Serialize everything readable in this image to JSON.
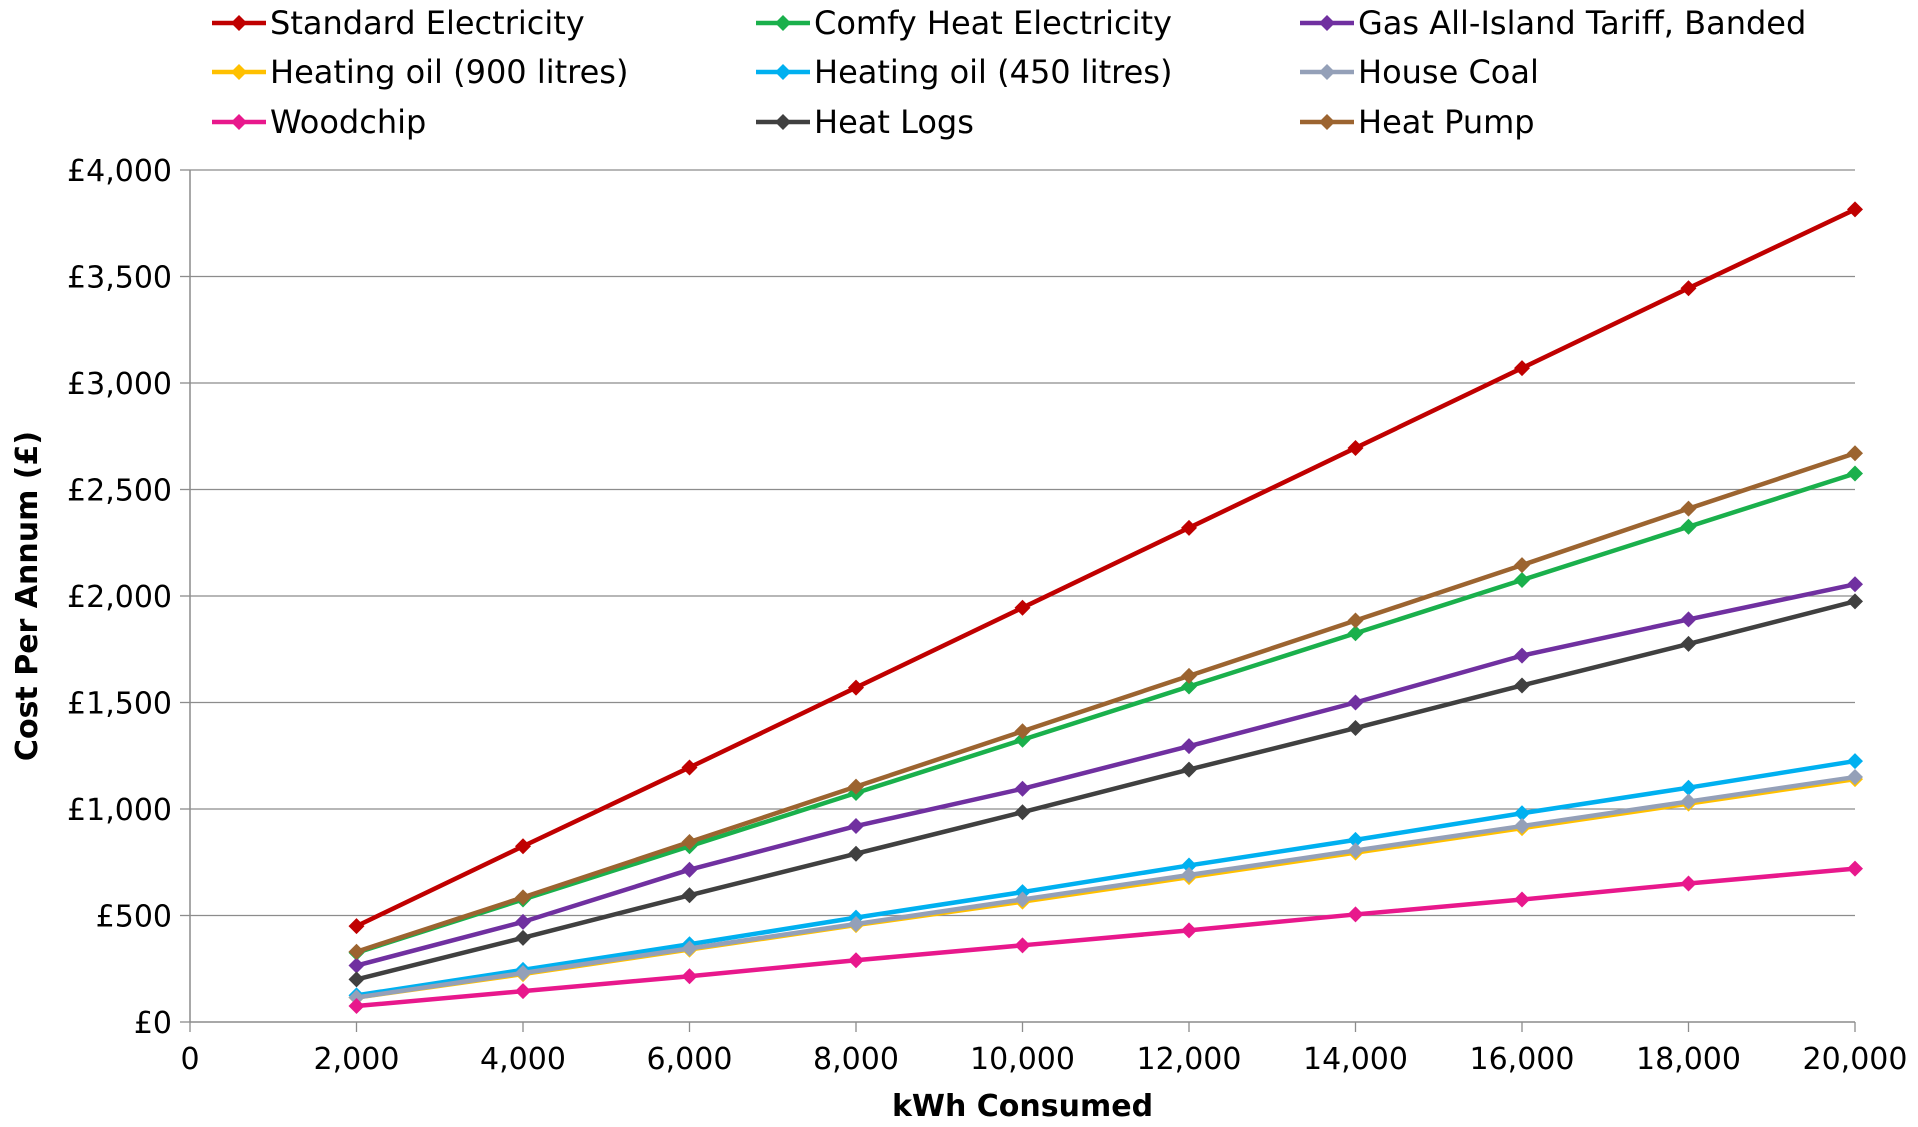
{
  "chart_data": {
    "type": "line",
    "title": "",
    "xlabel": "kWh Consumed",
    "ylabel": "Cost Per Annum (£)",
    "xlim": [
      0,
      20000
    ],
    "ylim": [
      0,
      4000
    ],
    "x_ticks": [
      0,
      2000,
      4000,
      6000,
      8000,
      10000,
      12000,
      14000,
      16000,
      18000,
      20000
    ],
    "x_tick_labels": [
      "0",
      "2,000",
      "4,000",
      "6,000",
      "8,000",
      "10,000",
      "12,000",
      "14,000",
      "16,000",
      "18,000",
      "20,000"
    ],
    "y_ticks": [
      0,
      500,
      1000,
      1500,
      2000,
      2500,
      3000,
      3500,
      4000
    ],
    "y_tick_labels": [
      "£0",
      "£500",
      "£1,000",
      "£1,500",
      "£2,000",
      "£2,500",
      "£3,000",
      "£3,500",
      "£4,000"
    ],
    "grid": "horizontal",
    "legend_position": "top",
    "x": [
      2000,
      4000,
      6000,
      8000,
      10000,
      12000,
      14000,
      16000,
      18000,
      20000
    ],
    "series": [
      {
        "name": "Standard Electricity",
        "color": "#c00000",
        "values": [
          450,
          825,
          1195,
          1570,
          1945,
          2320,
          2695,
          3070,
          3445,
          3815
        ]
      },
      {
        "name": "Comfy Heat Electricity",
        "color": "#1ab04c",
        "values": [
          325,
          575,
          825,
          1075,
          1325,
          1575,
          1825,
          2075,
          2325,
          2575
        ]
      },
      {
        "name": "Gas All-Island Tariff, Banded",
        "color": "#7030a0",
        "values": [
          265,
          470,
          715,
          920,
          1095,
          1295,
          1500,
          1720,
          1890,
          2055
        ]
      },
      {
        "name": "Heating oil (900 litres)",
        "color": "#ffc000",
        "values": [
          115,
          225,
          340,
          455,
          565,
          680,
          795,
          910,
          1025,
          1140
        ]
      },
      {
        "name": "Heating oil (450 litres)",
        "color": "#00b0f0",
        "values": [
          125,
          245,
          365,
          490,
          610,
          735,
          855,
          980,
          1100,
          1225
        ]
      },
      {
        "name": "House Coal",
        "color": "#94a0b8",
        "values": [
          115,
          230,
          345,
          460,
          575,
          690,
          805,
          920,
          1035,
          1150
        ]
      },
      {
        "name": "Woodchip",
        "color": "#e8188c",
        "values": [
          75,
          145,
          215,
          290,
          360,
          430,
          505,
          575,
          650,
          720
        ]
      },
      {
        "name": "Heat Logs",
        "color": "#404040",
        "values": [
          200,
          395,
          595,
          790,
          985,
          1185,
          1380,
          1580,
          1775,
          1975
        ]
      },
      {
        "name": "Heat Pump",
        "color": "#9c6430",
        "values": [
          330,
          585,
          845,
          1105,
          1365,
          1625,
          1885,
          2145,
          2410,
          2670
        ]
      }
    ]
  }
}
